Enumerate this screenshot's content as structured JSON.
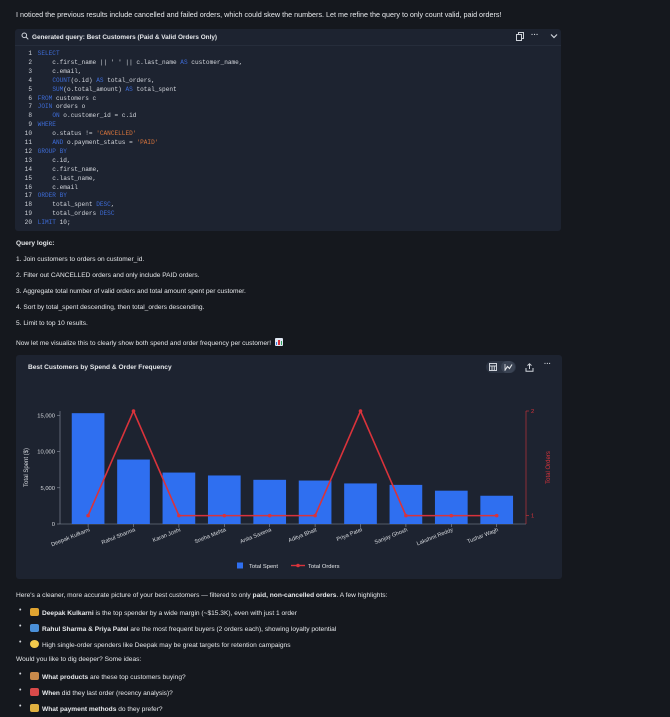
{
  "intro": "I noticed the previous results include cancelled and failed orders, which could skew the numbers. Let me refine the query to only count valid, paid orders!",
  "code_block": {
    "title": "Generated query: Best Customers (Paid & Valid Orders Only)",
    "lines": [
      [
        {
          "t": "SELECT",
          "c": "kw"
        }
      ],
      [
        {
          "t": "    c.first_name || ' ' || c.last_name ",
          "c": "ct"
        },
        {
          "t": "AS",
          "c": "kw"
        },
        {
          "t": " customer_name,",
          "c": "ct"
        }
      ],
      [
        {
          "t": "    c.email,",
          "c": "ct"
        }
      ],
      [
        {
          "t": "    ",
          "c": "ct"
        },
        {
          "t": "COUNT",
          "c": "kw"
        },
        {
          "t": "(o.id) ",
          "c": "ct"
        },
        {
          "t": "AS",
          "c": "kw"
        },
        {
          "t": " total_orders,",
          "c": "ct"
        }
      ],
      [
        {
          "t": "    ",
          "c": "ct"
        },
        {
          "t": "SUM",
          "c": "kw"
        },
        {
          "t": "(o.total_amount) ",
          "c": "ct"
        },
        {
          "t": "AS",
          "c": "kw"
        },
        {
          "t": " total_spent",
          "c": "ct"
        }
      ],
      [
        {
          "t": "FROM",
          "c": "kw"
        },
        {
          "t": " customers c",
          "c": "ct"
        }
      ],
      [
        {
          "t": "JOIN",
          "c": "kw"
        },
        {
          "t": " orders o",
          "c": "ct"
        }
      ],
      [
        {
          "t": "    ",
          "c": "ct"
        },
        {
          "t": "ON",
          "c": "kw"
        },
        {
          "t": " o.customer_id = c.id",
          "c": "ct"
        }
      ],
      [
        {
          "t": "WHERE",
          "c": "kw"
        }
      ],
      [
        {
          "t": "    o.status != ",
          "c": "ct"
        },
        {
          "t": "'CANCELLED'",
          "c": "str"
        }
      ],
      [
        {
          "t": "    ",
          "c": "ct"
        },
        {
          "t": "AND",
          "c": "kw"
        },
        {
          "t": " o.payment_status = ",
          "c": "ct"
        },
        {
          "t": "'PAID'",
          "c": "str"
        }
      ],
      [
        {
          "t": "GROUP BY",
          "c": "kw"
        }
      ],
      [
        {
          "t": "    c.id,",
          "c": "ct"
        }
      ],
      [
        {
          "t": "    c.first_name,",
          "c": "ct"
        }
      ],
      [
        {
          "t": "    c.last_name,",
          "c": "ct"
        }
      ],
      [
        {
          "t": "    c.email",
          "c": "ct"
        }
      ],
      [
        {
          "t": "ORDER BY",
          "c": "kw"
        }
      ],
      [
        {
          "t": "    total_spent ",
          "c": "ct"
        },
        {
          "t": "DESC",
          "c": "kw"
        },
        {
          "t": ",",
          "c": "ct"
        }
      ],
      [
        {
          "t": "    total_orders ",
          "c": "ct"
        },
        {
          "t": "DESC",
          "c": "kw"
        }
      ],
      [
        {
          "t": "LIMIT",
          "c": "kw"
        },
        {
          "t": " 10;",
          "c": "ct"
        }
      ]
    ]
  },
  "query_logic": {
    "heading": "Query logic:",
    "steps": [
      "1. Join customers to orders on customer_id.",
      "2. Filter out CANCELLED orders and only include PAID orders.",
      "3. Aggregate total number of valid orders and total amount spent per customer.",
      "4. Sort by total_spent descending, then total_orders descending.",
      "5. Limit to top 10 results."
    ]
  },
  "visualize_text": "Now let me visualize this to clearly show both spend and order frequency per customer!",
  "chart_data": {
    "type": "bar",
    "title": "Best Customers by Spend & Order Frequency",
    "categories": [
      "Deepak Kulkarni",
      "Rahul Sharma",
      "Karan Joshi",
      "Sneha Mehta",
      "Anita Saxena",
      "Aditya Bhatt",
      "Priya Patel",
      "Sanjay Ghosh",
      "Lakshmi Reddy",
      "Tushar Wagh"
    ],
    "series": [
      {
        "name": "Total Spent",
        "type": "bar",
        "axis": "left",
        "color": "#2f6ff0",
        "values": [
          15300,
          8900,
          7100,
          6700,
          6100,
          6000,
          5600,
          5400,
          4600,
          3900
        ]
      },
      {
        "name": "Total Orders",
        "type": "line",
        "axis": "right",
        "color": "#d9333b",
        "values": [
          1,
          2,
          1,
          1,
          1,
          1,
          2,
          1,
          1,
          1
        ]
      }
    ],
    "ylabel": "Total Spent ($)",
    "y2label": "Total Orders",
    "ylim": [
      0,
      15600
    ],
    "yticks": [
      "0",
      "5,000",
      "10,000",
      "15,000"
    ],
    "y2lim": [
      0.92,
      2.0
    ],
    "y2ticks": [
      "1",
      "2"
    ],
    "grid": false,
    "legend": "bottom"
  },
  "summary_text": {
    "prefix": "Here's a cleaner, more accurate picture of your best customers — filtered to only ",
    "emph": "paid, non-cancelled orders",
    "suffix": ". A few highlights:"
  },
  "highlights": [
    {
      "bold": "Deepak Kulkarni",
      "rest": " is the top spender by a wide margin (~$15.3K), even with just 1 order",
      "icon_color": "#e0a431"
    },
    {
      "bold": "Rahul Sharma & Priya Patel",
      "rest": " are the most frequent buyers (2 orders each), showing loyalty potential",
      "icon_color": "#4a90d9"
    },
    {
      "bold": "",
      "rest": "High single-order spenders like Deepak may be great targets for retention campaigns",
      "icon_color": "#f2c94c"
    }
  ],
  "followup_heading": "Would you like to dig deeper? Some ideas:",
  "ideas": [
    {
      "bold": "What products",
      "rest": " are these top customers buying?",
      "icon_color": "#c98a4b"
    },
    {
      "bold": "When",
      "rest": " did they last order (recency analysis)?",
      "icon_color": "#d94a4a"
    },
    {
      "bold": "What payment methods",
      "rest": " do they prefer?",
      "icon_color": "#e0b040"
    }
  ],
  "icons": {
    "search": "search-icon",
    "copy": "copy-icon",
    "more": "more-icon",
    "collapse": "chevron-down-icon",
    "table_view": "table-view-icon",
    "chart_view": "chart-view-icon",
    "share": "share-icon"
  }
}
